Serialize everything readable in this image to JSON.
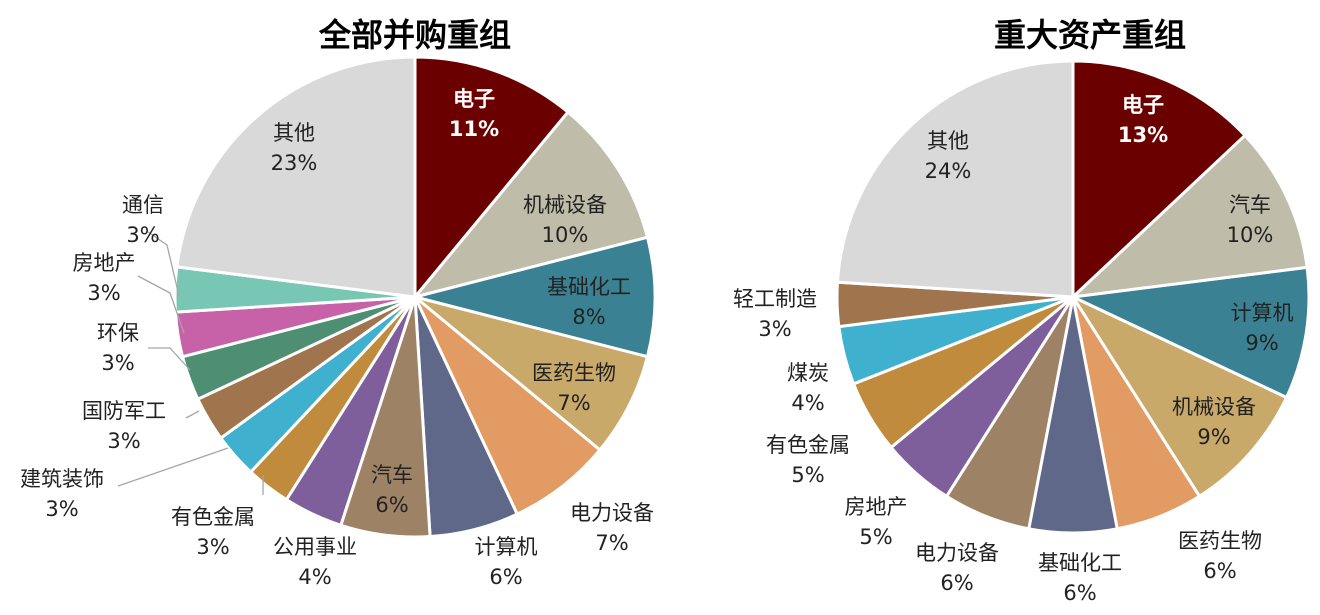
{
  "chart_data": [
    {
      "type": "pie",
      "title": "全部并购重组",
      "slices": [
        {
          "name": "电子",
          "value": 11,
          "label": "11%",
          "color": "#6b0000"
        },
        {
          "name": "机械设备",
          "value": 10,
          "label": "10%",
          "color": "#bfbca9"
        },
        {
          "name": "基础化工",
          "value": 8,
          "label": "8%",
          "color": "#3a8293"
        },
        {
          "name": "医药生物",
          "value": 7,
          "label": "7%",
          "color": "#c8a96a"
        },
        {
          "name": "电力设备",
          "value": 7,
          "label": "7%",
          "color": "#e29c63"
        },
        {
          "name": "计算机",
          "value": 6,
          "label": "6%",
          "color": "#5f6888"
        },
        {
          "name": "汽车",
          "value": 6,
          "label": "6%",
          "color": "#9e8266"
        },
        {
          "name": "公用事业",
          "value": 4,
          "label": "4%",
          "color": "#7f5e9c"
        },
        {
          "name": "有色金属",
          "value": 3,
          "label": "3%",
          "color": "#c08b3c"
        },
        {
          "name": "建筑装饰",
          "value": 3,
          "label": "3%",
          "color": "#3fb1cf"
        },
        {
          "name": "国防军工",
          "value": 3,
          "label": "3%",
          "color": "#a0754d"
        },
        {
          "name": "环保",
          "value": 3,
          "label": "3%",
          "color": "#4e8e72"
        },
        {
          "name": "房地产",
          "value": 3,
          "label": "3%",
          "color": "#c761a8"
        },
        {
          "name": "通信",
          "value": 3,
          "label": "3%",
          "color": "#78c6b4"
        },
        {
          "name": "其他",
          "value": 23,
          "label": "23%",
          "color": "#d9d9d9"
        }
      ]
    },
    {
      "type": "pie",
      "title": "重大资产重组",
      "slices": [
        {
          "name": "电子",
          "value": 13,
          "label": "13%",
          "color": "#6b0000"
        },
        {
          "name": "汽车",
          "value": 10,
          "label": "10%",
          "color": "#bfbca9"
        },
        {
          "name": "计算机",
          "value": 9,
          "label": "9%",
          "color": "#3a8293"
        },
        {
          "name": "机械设备",
          "value": 9,
          "label": "9%",
          "color": "#c8a96a"
        },
        {
          "name": "医药生物",
          "value": 6,
          "label": "6%",
          "color": "#e29c63"
        },
        {
          "name": "基础化工",
          "value": 6,
          "label": "6%",
          "color": "#5f6888"
        },
        {
          "name": "电力设备",
          "value": 6,
          "label": "6%",
          "color": "#9e8266"
        },
        {
          "name": "房地产",
          "value": 5,
          "label": "5%",
          "color": "#7f5e9c"
        },
        {
          "name": "有色金属",
          "value": 5,
          "label": "5%",
          "color": "#c08b3c"
        },
        {
          "name": "煤炭",
          "value": 4,
          "label": "4%",
          "color": "#3fb1cf"
        },
        {
          "name": "轻工制造",
          "value": 3,
          "label": "3%",
          "color": "#a0754d"
        },
        {
          "name": "其他",
          "value": 24,
          "label": "24%",
          "color": "#d9d9d9"
        }
      ]
    }
  ]
}
